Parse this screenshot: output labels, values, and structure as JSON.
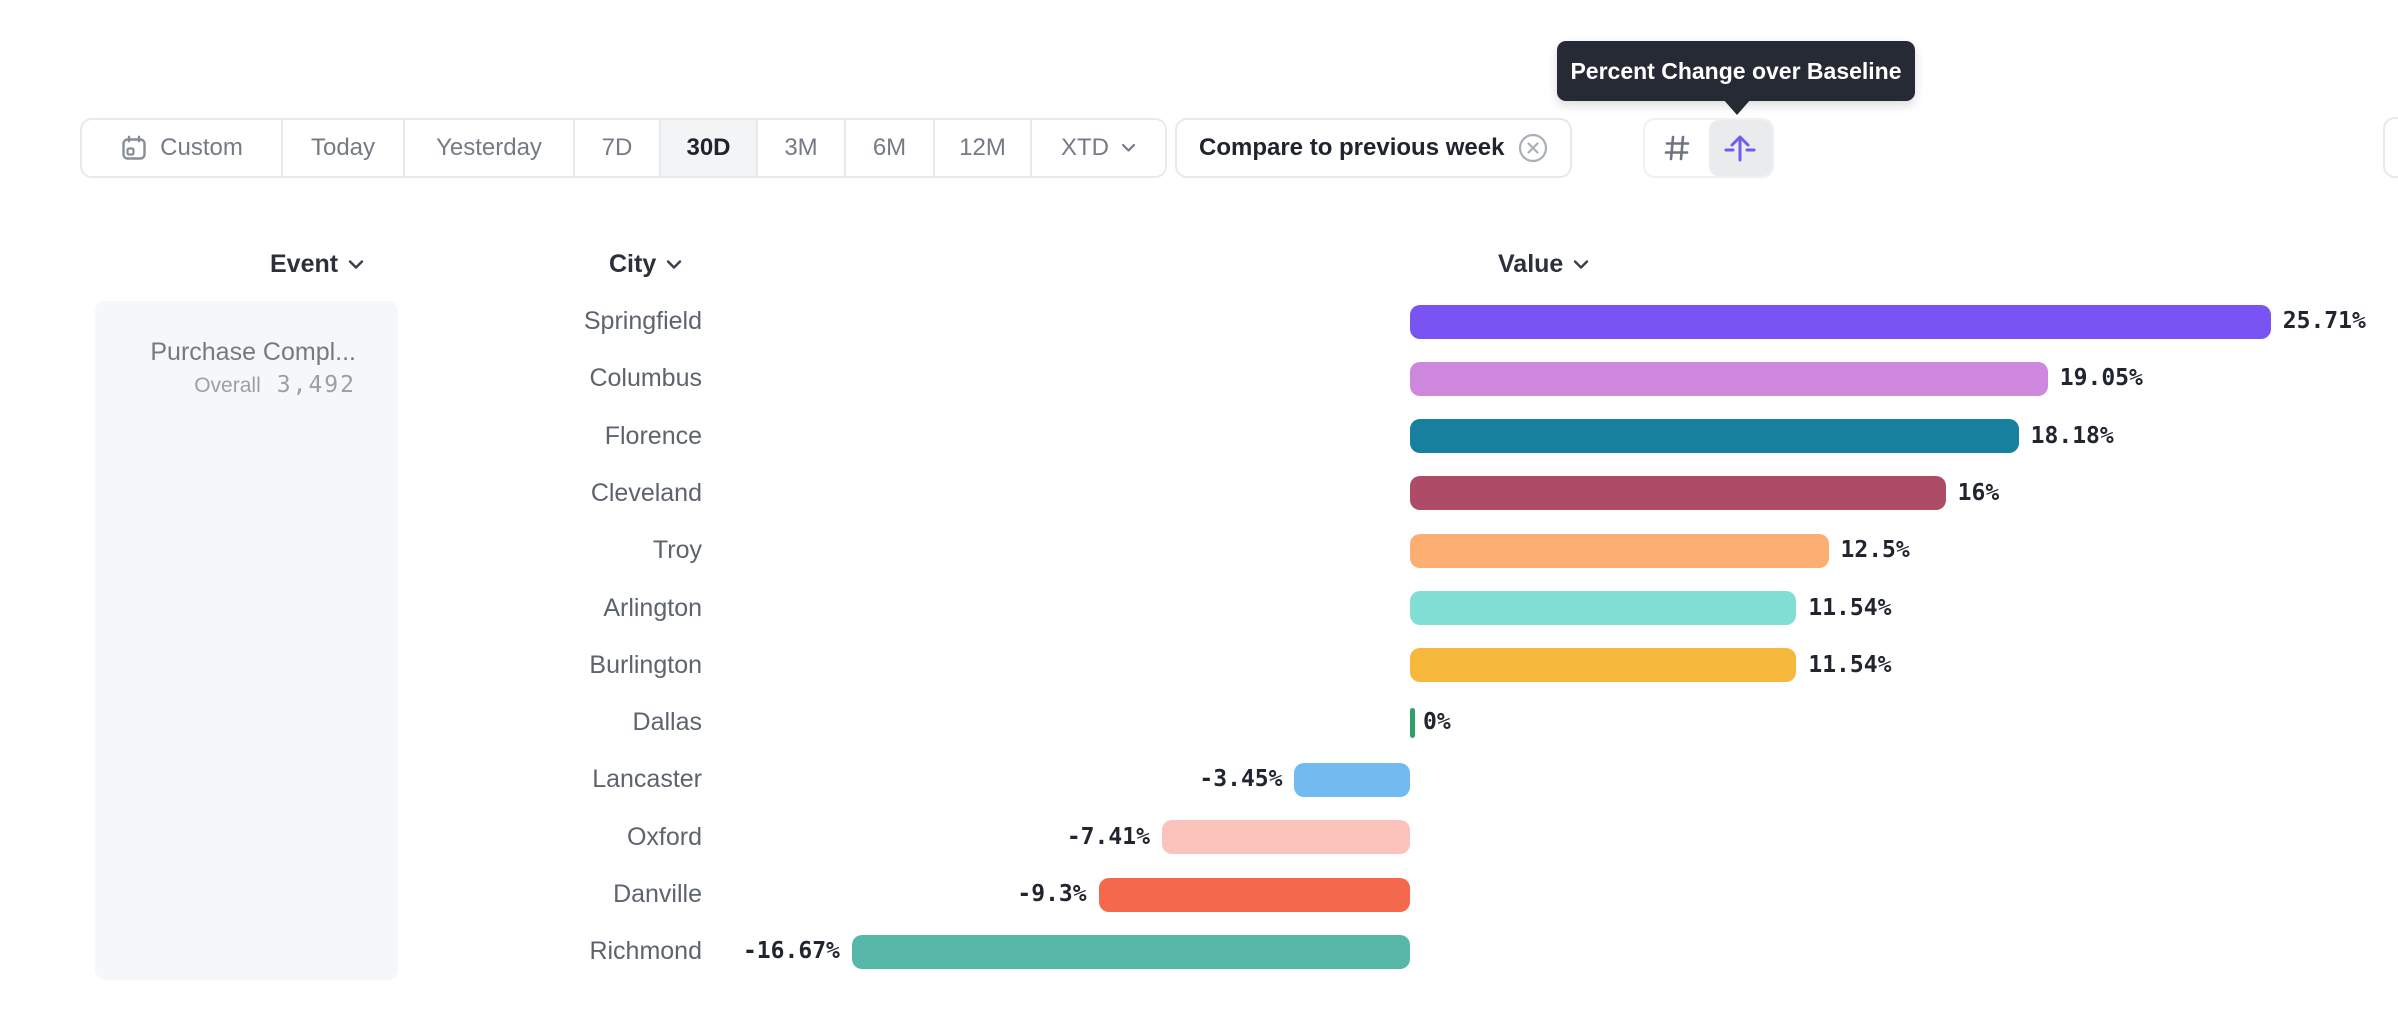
{
  "toolbar": {
    "date_ranges": [
      {
        "label": "Custom",
        "icon": "calendar-icon",
        "active": false
      },
      {
        "label": "Today",
        "active": false
      },
      {
        "label": "Yesterday",
        "active": false
      },
      {
        "label": "7D",
        "active": false
      },
      {
        "label": "30D",
        "active": true
      },
      {
        "label": "3M",
        "active": false
      },
      {
        "label": "6M",
        "active": false
      },
      {
        "label": "12M",
        "active": false
      },
      {
        "label": "XTD",
        "chevron": true,
        "active": false
      }
    ],
    "compare_button": {
      "label": "Compare to previous week",
      "icon": "close-circle-icon"
    },
    "view_modes": [
      {
        "icon": "hash-icon",
        "active": false
      },
      {
        "icon": "percent-change-icon",
        "active": true
      }
    ]
  },
  "tooltip": {
    "text": "Percent Change over Baseline"
  },
  "columns": {
    "event": "Event",
    "city": "City",
    "value": "Value"
  },
  "event_panel": {
    "title": "Purchase Compl...",
    "overall_label": "Overall",
    "overall_value": "3,492"
  },
  "chart_data": {
    "type": "bar",
    "orientation": "horizontal",
    "title": "Percent Change over Baseline",
    "unit": "%",
    "baseline": 0,
    "categories": [
      "Springfield",
      "Columbus",
      "Florence",
      "Cleveland",
      "Troy",
      "Arlington",
      "Burlington",
      "Dallas",
      "Lancaster",
      "Oxford",
      "Danville",
      "Richmond"
    ],
    "values": [
      25.71,
      19.05,
      18.18,
      16,
      12.5,
      11.54,
      11.54,
      0,
      -3.45,
      -7.41,
      -9.3,
      -16.67
    ],
    "labels": [
      "25.71%",
      "19.05%",
      "18.18%",
      "16%",
      "12.5%",
      "11.54%",
      "11.54%",
      "0%",
      "-3.45%",
      "-7.41%",
      "-9.3%",
      "-16.67%"
    ],
    "colors": [
      "#7a53f3",
      "#cd88de",
      "#17809e",
      "#ae4c68",
      "#fdae72",
      "#80ded5",
      "#f5b83d",
      "#30a06b",
      "#72bbf1",
      "#fbc3bb",
      "#f4694b",
      "#57b7a9"
    ],
    "xlim": [
      -20,
      29
    ],
    "grid": false,
    "legend": false
  },
  "colors": {
    "accent_purple": "#6e5bef",
    "tooltip_bg": "#262a35",
    "border": "#e8e9eb",
    "active_segment_bg": "#f3f4f5",
    "zero_tick_green": "#30a06b"
  }
}
